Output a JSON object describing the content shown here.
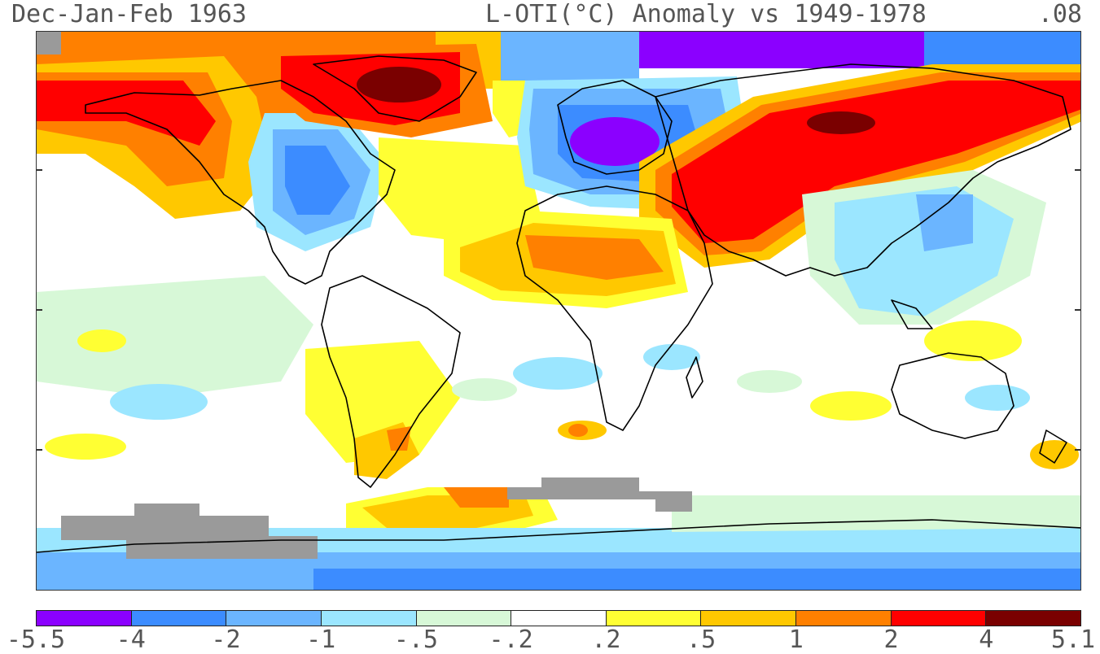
{
  "header": {
    "left": "Dec-Jan-Feb 1963",
    "center": "L-OTI(°C) Anomaly vs 1949-1978",
    "right": ".08"
  },
  "legend": {
    "colors": [
      "#8b00ff",
      "#3c8cff",
      "#6bb5ff",
      "#9be6ff",
      "#d7f8d7",
      "#ffffff",
      "#ffff33",
      "#ffc800",
      "#ff8000",
      "#ff0000",
      "#7a0000"
    ],
    "labels": [
      "-5.5",
      "-4",
      "-2",
      "-1",
      "-.5",
      "-.2",
      ".2",
      ".5",
      "1",
      "2",
      "4",
      "5.1"
    ]
  },
  "map": {
    "missing_color": "#9a9a9a",
    "coastline_color": "#000000"
  }
}
